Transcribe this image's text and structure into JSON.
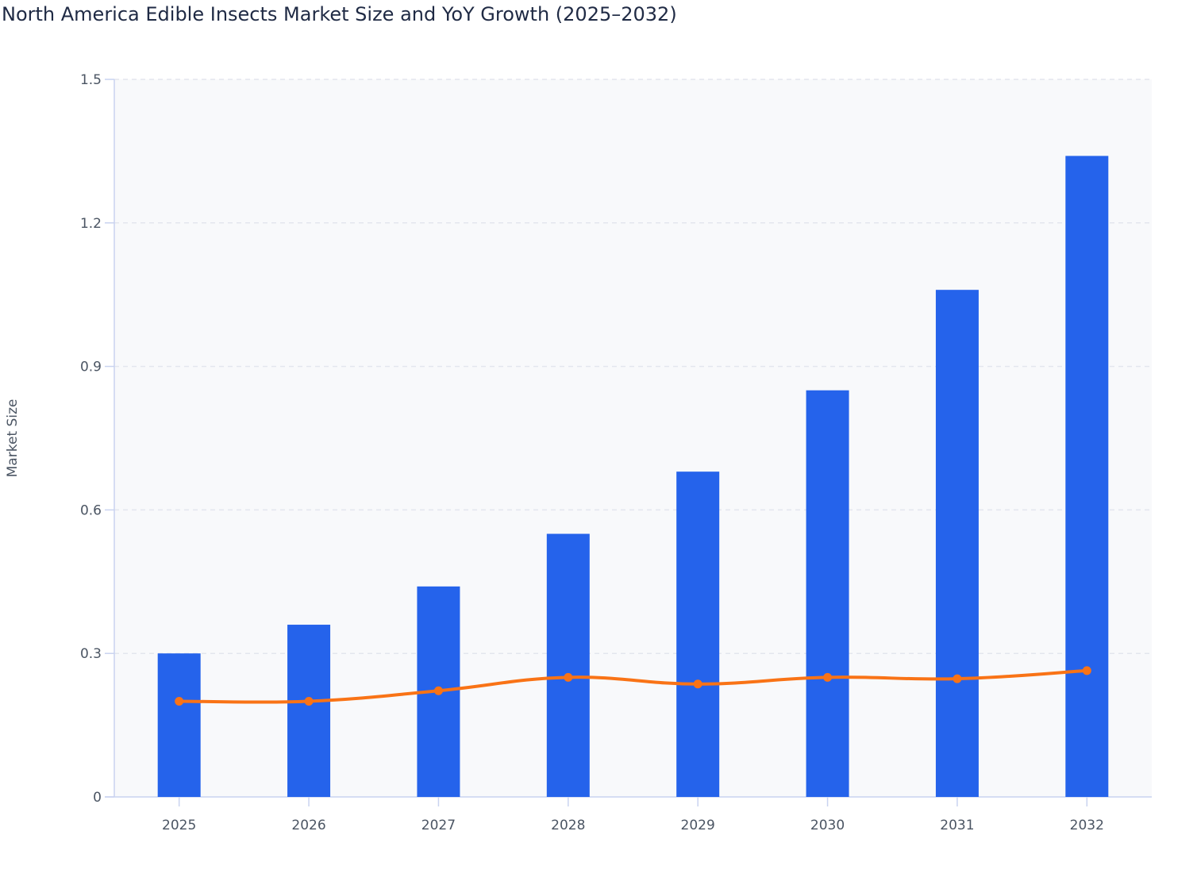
{
  "chart_data": {
    "type": "bar",
    "title": "North America Edible Insects Market Size and YoY Growth (2025–2032)",
    "xlabel": "",
    "ylabel": "Market Size",
    "ylim": [
      0,
      1.5
    ],
    "yticks": [
      "0",
      "0.3",
      "0.6",
      "0.9",
      "1.2",
      "1.5"
    ],
    "grid": true,
    "categories": [
      "2025",
      "2026",
      "2027",
      "2028",
      "2029",
      "2030",
      "2031",
      "2032"
    ],
    "series": [
      {
        "type": "bar",
        "color": "#2563eb",
        "values": [
          0.3,
          0.36,
          0.44,
          0.55,
          0.68,
          0.85,
          1.06,
          1.34
        ]
      },
      {
        "type": "line",
        "smooth": true,
        "markers": true,
        "color": "#f97316",
        "values": [
          0.2,
          0.2,
          0.222,
          0.25,
          0.236,
          0.25,
          0.247,
          0.264
        ]
      }
    ]
  }
}
